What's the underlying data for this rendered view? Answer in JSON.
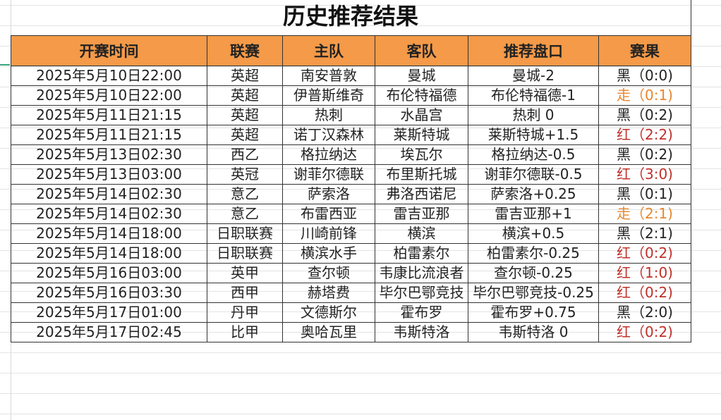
{
  "title": "历史推荐结果",
  "headers": [
    "开赛时间",
    "联赛",
    "主队",
    "客队",
    "推荐盘口",
    "赛果"
  ],
  "colors": {
    "header_bg": "#f49a48",
    "red": "#c0302a",
    "orange": "#e8862e",
    "black": "#222222"
  },
  "rows": [
    [
      "2025年5月10日22:00",
      "英超",
      "南安普敦",
      "曼城",
      "曼城-2",
      "黑（0:0)",
      "black"
    ],
    [
      "2025年5月10日22:00",
      "英超",
      "伊普斯维奇",
      "布伦特福德",
      "布伦特福德-1",
      "走（0:1)",
      "orange"
    ],
    [
      "2025年5月11日21:15",
      "英超",
      "热刺",
      "水晶宫",
      "热刺 0",
      "黑（0:2)",
      "black"
    ],
    [
      "2025年5月11日21:15",
      "英超",
      "诺丁汉森林",
      "莱斯特城",
      "莱斯特城+1.5",
      "红（2:2)",
      "red"
    ],
    [
      "2025年5月13日02:30",
      "西乙",
      "格拉纳达",
      "埃瓦尔",
      "格拉纳达-0.5",
      "黑（0:2)",
      "black"
    ],
    [
      "2025年5月13日03:00",
      "英冠",
      "谢菲尔德联",
      "布里斯托城",
      "谢菲尔德联-0.5",
      "红（3:0)",
      "red"
    ],
    [
      "2025年5月14日02:30",
      "意乙",
      "萨索洛",
      "弗洛西诺尼",
      "萨索洛+0.25",
      "黑（0:1)",
      "black"
    ],
    [
      "2025年5月14日02:30",
      "意乙",
      "布雷西亚",
      "雷吉亚那",
      "雷吉亚那+1",
      "走（2:1)",
      "orange"
    ],
    [
      "2025年5月14日18:00",
      "日职联赛",
      "川崎前锋",
      "横滨",
      "横滨+0.5",
      "黑（2:1)",
      "black"
    ],
    [
      "2025年5月14日18:00",
      "日职联赛",
      "横滨水手",
      "柏雷素尔",
      "柏雷素尔-0.25",
      "红（0:2)",
      "red"
    ],
    [
      "2025年5月16日03:00",
      "英甲",
      "查尔顿",
      "韦康比流浪者",
      "查尔顿-0.25",
      "红（1:0)",
      "red"
    ],
    [
      "2025年5月16日03:30",
      "西甲",
      "赫塔费",
      "毕尔巴鄂竞技",
      "毕尔巴鄂竞技-0.25",
      "红（0:2)",
      "red"
    ],
    [
      "2025年5月17日01:00",
      "丹甲",
      "文德斯尔",
      "霍布罗",
      "霍布罗+0.75",
      "黑（2:0)",
      "black"
    ],
    [
      "2025年5月17日02:45",
      "比甲",
      "奥哈瓦里",
      "韦斯特洛",
      "韦斯特洛 0",
      "红（0:2)",
      "red"
    ]
  ]
}
